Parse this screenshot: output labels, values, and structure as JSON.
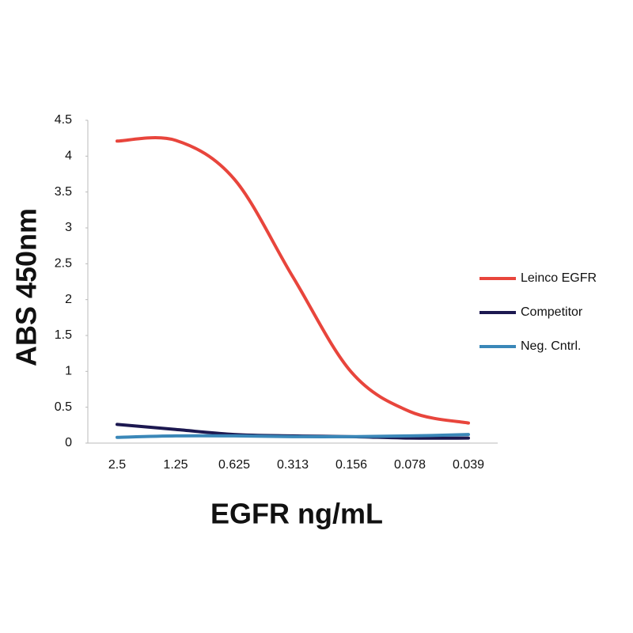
{
  "chart_data": {
    "type": "line",
    "x_label": "EGFR ng/mL",
    "y_label": "ABS 450nm",
    "categories": [
      "2.5",
      "1.25",
      "0.625",
      "0.313",
      "0.156",
      "0.078",
      "0.039"
    ],
    "series": [
      {
        "name": "Leinco EGFR",
        "color": "#e8453c",
        "values": [
          4.21,
          4.22,
          3.68,
          2.32,
          0.99,
          0.44,
          0.28
        ]
      },
      {
        "name": "Competitor",
        "color": "#1c1850",
        "values": [
          0.26,
          0.19,
          0.12,
          0.1,
          0.09,
          0.07,
          0.07
        ]
      },
      {
        "name": "Neg. Cntrl.",
        "color": "#3a87b8",
        "values": [
          0.08,
          0.1,
          0.1,
          0.09,
          0.09,
          0.1,
          0.12
        ]
      }
    ],
    "ylim": [
      0,
      4.5
    ],
    "yticks": [
      0,
      0.5,
      1,
      1.5,
      2,
      2.5,
      3,
      3.5,
      4,
      4.5
    ],
    "legend": "right"
  }
}
